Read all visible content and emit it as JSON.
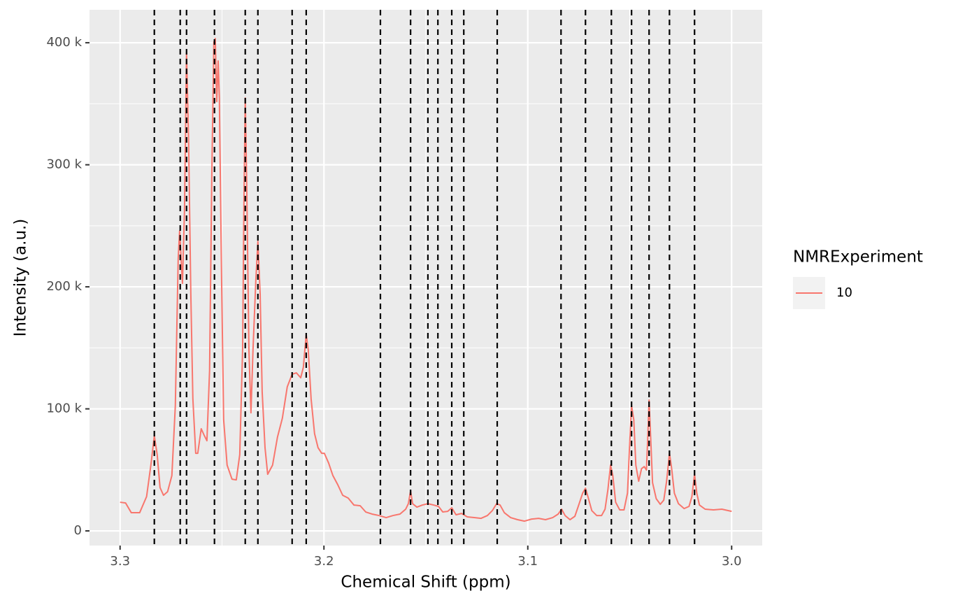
{
  "chart_data": {
    "type": "line",
    "x_label": "Chemical Shift (ppm)",
    "y_label": "Intensity (a.u.)",
    "legend_title": "NMRExperiment",
    "legend": "right",
    "grid": true,
    "background": "#ebebeb",
    "xlim": [
      3.315,
      2.985
    ],
    "xticks": [
      3.3,
      3.2,
      3.1,
      {
        "value": 3,
        "label": "3.0"
      }
    ],
    "ylim": [
      -12000,
      427000
    ],
    "yticks": [
      0,
      {
        "value": 100000,
        "label": "100 k"
      },
      {
        "value": 200000,
        "label": "200 k"
      },
      {
        "value": 300000,
        "label": "300 k"
      },
      {
        "value": 400000,
        "label": "400 k"
      }
    ],
    "vlines": [
      3.2832,
      3.2705,
      3.2674,
      3.2537,
      3.2386,
      3.2324,
      3.2156,
      3.2087,
      3.1723,
      3.1575,
      3.149,
      3.1441,
      3.1373,
      3.1314,
      3.115,
      3.0837,
      3.0717,
      3.059,
      3.0491,
      3.0405,
      3.0305,
      3.0182
    ],
    "vline_color": "#000000",
    "x": [
      3.3,
      3.2973,
      3.2945,
      3.2904,
      3.287,
      3.2849,
      3.2832,
      3.2818,
      3.2804,
      3.2787,
      3.2767,
      3.2746,
      3.2729,
      3.2715,
      3.2708,
      3.2694,
      3.2684,
      3.2674,
      3.2664,
      3.2653,
      3.2643,
      3.2629,
      3.2619,
      3.2602,
      3.2588,
      3.2574,
      3.2561,
      3.255,
      3.254,
      3.2533,
      3.2526,
      3.2519,
      3.2513,
      3.2502,
      3.2492,
      3.2475,
      3.2451,
      3.243,
      3.2413,
      3.2399,
      3.2392,
      3.2386,
      3.2379,
      3.2368,
      3.2358,
      3.2348,
      3.2334,
      3.2324,
      3.2313,
      3.2303,
      3.2289,
      3.2276,
      3.2252,
      3.2228,
      3.2204,
      3.218,
      3.2156,
      3.2135,
      3.2114,
      3.2101,
      3.2087,
      3.2077,
      3.2063,
      3.2046,
      3.2029,
      3.2011,
      3.1998,
      3.1977,
      3.1956,
      3.1932,
      3.1908,
      3.1881,
      3.1853,
      3.1822,
      3.1795,
      3.1764,
      3.173,
      3.1695,
      3.1661,
      3.1627,
      3.1599,
      3.1586,
      3.1575,
      3.1565,
      3.1544,
      3.1517,
      3.149,
      3.1462,
      3.1438,
      3.1417,
      3.1393,
      3.1373,
      3.1352,
      3.1325,
      3.1297,
      3.1263,
      3.1229,
      3.1198,
      3.1174,
      3.1153,
      3.1136,
      3.1115,
      3.1084,
      3.105,
      3.1016,
      3.0981,
      3.0947,
      3.0913,
      3.0878,
      3.0851,
      3.0834,
      3.0817,
      3.0793,
      3.0769,
      3.0748,
      3.0731,
      3.0717,
      3.0703,
      3.0686,
      3.0662,
      3.0638,
      3.0621,
      3.0607,
      3.0594,
      3.0583,
      3.0569,
      3.0549,
      3.0528,
      3.0511,
      3.0501,
      3.0491,
      3.048,
      3.047,
      3.0456,
      3.0442,
      3.0429,
      3.0418,
      3.0412,
      3.0405,
      3.0398,
      3.0388,
      3.037,
      3.035,
      3.0333,
      3.0319,
      3.0305,
      3.0295,
      3.0281,
      3.0261,
      3.0233,
      3.0209,
      3.0195,
      3.0182,
      3.0171,
      3.0158,
      3.013,
      3.0089,
      3.0048,
      3.0
    ],
    "series": [
      {
        "name": "10",
        "color": "#f8766d",
        "values": [
          23500,
          22900,
          14900,
          14900,
          28100,
          53900,
          77900,
          62500,
          35500,
          29200,
          32100,
          45300,
          102600,
          222900,
          245800,
          202800,
          263000,
          391900,
          320300,
          194300,
          108300,
          63600,
          63600,
          83700,
          78500,
          73900,
          131200,
          291700,
          400500,
          403400,
          351800,
          385100,
          354700,
          205700,
          91100,
          53900,
          42400,
          41800,
          62500,
          148400,
          274500,
          354700,
          285900,
          148400,
          96800,
          148400,
          205700,
          237200,
          194300,
          114000,
          68200,
          46400,
          53900,
          76800,
          92300,
          118000,
          128400,
          129500,
          125500,
          134100,
          161000,
          148400,
          108300,
          79700,
          68200,
          63600,
          63600,
          55600,
          45300,
          37800,
          29200,
          26900,
          21200,
          20600,
          15500,
          13800,
          12600,
          10900,
          12600,
          13800,
          17800,
          22300,
          32700,
          22300,
          19500,
          21200,
          22300,
          21200,
          20100,
          15500,
          16000,
          18900,
          13200,
          14300,
          11500,
          10900,
          10300,
          12600,
          16600,
          22300,
          21200,
          14900,
          10900,
          9200,
          8000,
          9700,
          10300,
          9200,
          10900,
          13800,
          17800,
          12600,
          9200,
          12000,
          22300,
          30900,
          35000,
          26900,
          16600,
          12600,
          12600,
          17800,
          33800,
          53900,
          45300,
          23500,
          17200,
          17200,
          30900,
          68200,
          102600,
          91100,
          53900,
          40700,
          51000,
          52700,
          49900,
          73900,
          107200,
          79700,
          39500,
          26400,
          21800,
          25200,
          40700,
          63600,
          52100,
          30900,
          22300,
          18300,
          20100,
          28100,
          46400,
          30900,
          21200,
          17800,
          17200,
          17800,
          16000
        ]
      }
    ]
  }
}
